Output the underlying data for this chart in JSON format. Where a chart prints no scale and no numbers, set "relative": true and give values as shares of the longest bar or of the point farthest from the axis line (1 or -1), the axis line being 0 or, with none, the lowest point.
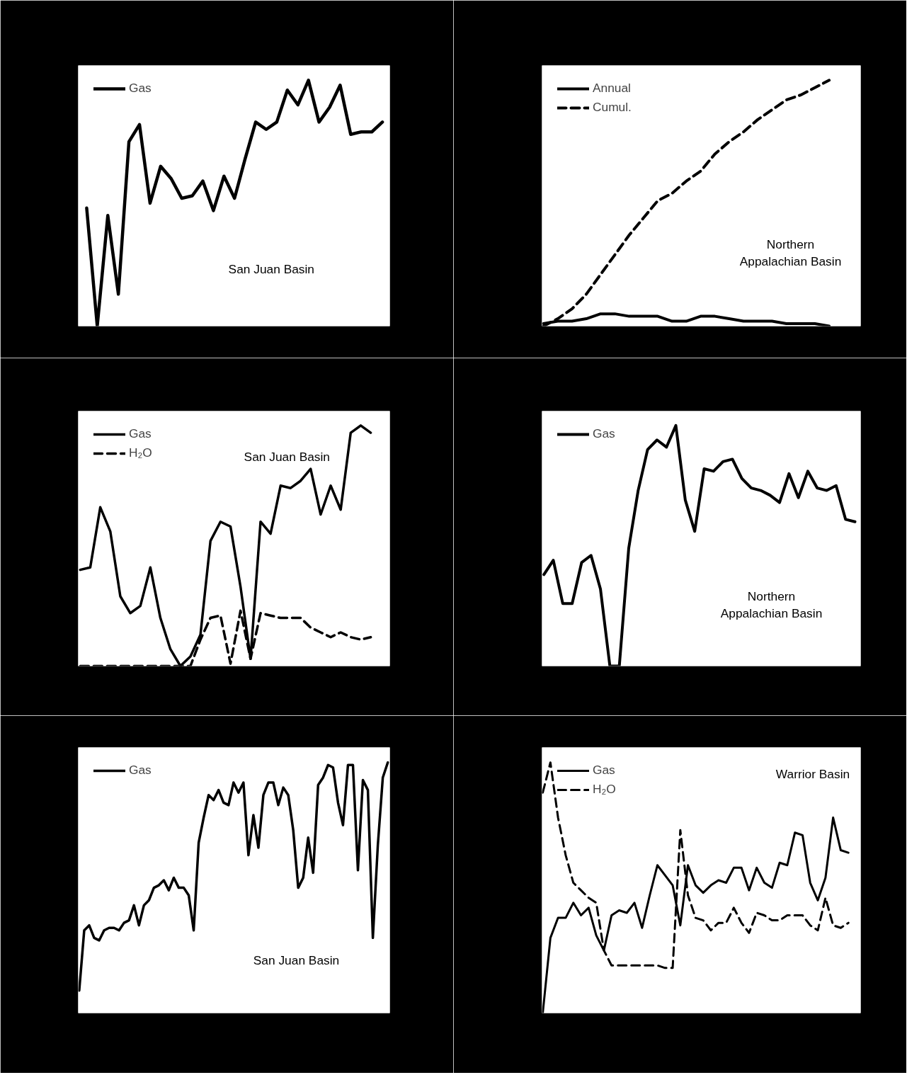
{
  "chart_data": [
    {
      "type": "line",
      "relative": true,
      "legend": "top left",
      "annotations": [
        "San Juan Basin"
      ],
      "categories": [
        null,
        null,
        null,
        null,
        null,
        null,
        null,
        null,
        null,
        null,
        null,
        null,
        null,
        null,
        null,
        null,
        null,
        null,
        null,
        null,
        null,
        null,
        null,
        null,
        null,
        null,
        null,
        null,
        null
      ],
      "series": [
        {
          "name": "Gas",
          "color": "#000000",
          "line_style": "solid",
          "values": [
            0.48,
            0,
            0.45,
            0.13,
            0.75,
            0.82,
            0.5,
            0.65,
            0.6,
            0.52,
            0.53,
            0.59,
            0.47,
            0.61,
            0.52,
            0.68,
            0.83,
            0.8,
            0.83,
            0.96,
            0.9,
            1,
            0.83,
            0.89,
            0.98,
            0.78,
            0.79,
            0.79,
            0.83
          ]
        }
      ]
    },
    {
      "type": "line",
      "relative": true,
      "legend": "top left",
      "annotations": [
        "Northern\nAppalachian Basin"
      ],
      "categories": [
        null,
        null,
        null,
        null,
        null,
        null,
        null,
        null,
        null,
        null,
        null,
        null,
        null,
        null,
        null,
        null,
        null,
        null,
        null,
        null,
        null
      ],
      "series": [
        {
          "name": "Annual",
          "color": "#000000",
          "line_style": "solid",
          "values": [
            0.01,
            0.02,
            0.02,
            0.03,
            0.05,
            0.05,
            0.04,
            0.04,
            0.04,
            0.02,
            0.02,
            0.04,
            0.04,
            0.03,
            0.02,
            0.02,
            0.02,
            0.01,
            0.01,
            0.01,
            0
          ]
        },
        {
          "name": "Cumul.",
          "color": "#000000",
          "line_style": "dashed",
          "values": [
            0,
            0.03,
            0.07,
            0.13,
            0.21,
            0.29,
            0.37,
            0.44,
            0.51,
            0.54,
            0.59,
            0.63,
            0.7,
            0.75,
            0.79,
            0.84,
            0.88,
            0.92,
            0.94,
            0.97,
            1
          ]
        }
      ]
    },
    {
      "type": "line",
      "relative": true,
      "legend": "top left",
      "annotations": [
        "San Juan Basin"
      ],
      "categories": [
        null,
        null,
        null,
        null,
        null,
        null,
        null,
        null,
        null,
        null,
        null,
        null,
        null,
        null,
        null,
        null,
        null,
        null,
        null,
        null,
        null,
        null,
        null,
        null,
        null,
        null,
        null,
        null,
        null,
        null
      ],
      "series": [
        {
          "name": "Gas",
          "color": "#000000",
          "line_style": "solid",
          "values": [
            0.4,
            0.41,
            0.66,
            0.56,
            0.29,
            0.22,
            0.25,
            0.41,
            0.2,
            0.07,
            0,
            0.04,
            0.13,
            0.52,
            0.6,
            0.58,
            0.33,
            0.03,
            0.6,
            0.55,
            0.75,
            0.74,
            0.77,
            0.82,
            0.63,
            0.75,
            0.65,
            0.97,
            1,
            0.97
          ]
        },
        {
          "name": "H₂O",
          "color": "#000000",
          "line_style": "dashed",
          "values": [
            0,
            0,
            0,
            0,
            0,
            0,
            0,
            0,
            0,
            0,
            0,
            0,
            0.11,
            0.2,
            0.21,
            0.01,
            0.23,
            0.03,
            0.22,
            0.21,
            0.2,
            0.2,
            0.2,
            0.16,
            0.14,
            0.12,
            0.14,
            0.12,
            0.11,
            0.12
          ]
        }
      ]
    },
    {
      "type": "line",
      "relative": true,
      "legend": "top left",
      "annotations": [
        "Northern\nAppalachian Basin"
      ],
      "categories": [
        null,
        null,
        null,
        null,
        null,
        null,
        null,
        null,
        null,
        null,
        null,
        null,
        null,
        null,
        null,
        null,
        null,
        null,
        null,
        null,
        null,
        null,
        null,
        null,
        null,
        null,
        null,
        null,
        null,
        null,
        null,
        null,
        null,
        null
      ],
      "series": [
        {
          "name": "Gas",
          "color": "#000000",
          "line_style": "solid",
          "values": [
            0.38,
            0.44,
            0.26,
            0.26,
            0.43,
            0.46,
            0.32,
            0,
            0,
            0.49,
            0.73,
            0.9,
            0.94,
            0.91,
            1,
            0.69,
            0.56,
            0.82,
            0.81,
            0.85,
            0.86,
            0.78,
            0.74,
            0.73,
            0.71,
            0.68,
            0.8,
            0.7,
            0.81,
            0.74,
            0.73,
            0.75,
            0.61,
            0.6
          ]
        }
      ]
    },
    {
      "type": "line",
      "relative": true,
      "legend": "top left",
      "annotations": [
        "San Juan Basin"
      ],
      "categories": [
        null,
        null,
        null,
        null,
        null,
        null,
        null,
        null,
        null,
        null,
        null,
        null,
        null,
        null,
        null,
        null,
        null,
        null,
        null,
        null,
        null,
        null,
        null,
        null,
        null,
        null,
        null,
        null,
        null,
        null,
        null,
        null,
        null,
        null,
        null,
        null,
        null,
        null,
        null,
        null,
        null,
        null,
        null,
        null,
        null,
        null,
        null,
        null,
        null,
        null,
        null,
        null,
        null,
        null,
        null,
        null,
        null,
        null,
        null,
        null,
        null,
        null,
        null
      ],
      "series": [
        {
          "name": "Gas",
          "color": "#000000",
          "line_style": "solid",
          "values": [
            0.09,
            0.33,
            0.35,
            0.3,
            0.29,
            0.33,
            0.34,
            0.34,
            0.33,
            0.36,
            0.37,
            0.43,
            0.35,
            0.43,
            0.45,
            0.5,
            0.51,
            0.53,
            0.49,
            0.54,
            0.5,
            0.5,
            0.47,
            0.33,
            0.68,
            0.78,
            0.87,
            0.85,
            0.89,
            0.84,
            0.83,
            0.92,
            0.88,
            0.92,
            0.63,
            0.79,
            0.66,
            0.87,
            0.92,
            0.92,
            0.83,
            0.9,
            0.87,
            0.73,
            0.5,
            0.54,
            0.7,
            0.56,
            0.91,
            0.94,
            0.99,
            0.98,
            0.84,
            0.75,
            0.99,
            0.99,
            0.57,
            0.93,
            0.89,
            0.3,
            0.67,
            0.94,
            1
          ]
        }
      ]
    },
    {
      "type": "line",
      "relative": true,
      "legend": "top left",
      "annotations": [
        "Warrior Basin"
      ],
      "categories": [
        null,
        null,
        null,
        null,
        null,
        null,
        null,
        null,
        null,
        null,
        null,
        null,
        null,
        null,
        null,
        null,
        null,
        null,
        null,
        null,
        null,
        null,
        null,
        null,
        null,
        null,
        null,
        null,
        null,
        null,
        null,
        null,
        null,
        null,
        null,
        null,
        null,
        null,
        null,
        null,
        null
      ],
      "series": [
        {
          "name": "Gas",
          "color": "#000000",
          "line_style": "solid",
          "values": [
            0,
            0.3,
            0.38,
            0.38,
            0.44,
            0.39,
            0.42,
            0.31,
            0.25,
            0.39,
            0.41,
            0.4,
            0.44,
            0.34,
            0.47,
            0.59,
            0.55,
            0.51,
            0.35,
            0.59,
            0.51,
            0.48,
            0.51,
            0.53,
            0.52,
            0.58,
            0.58,
            0.49,
            0.58,
            0.52,
            0.5,
            0.6,
            0.59,
            0.72,
            0.71,
            0.52,
            0.45,
            0.54,
            0.78,
            0.65,
            0.64
          ]
        },
        {
          "name": "H₂O",
          "color": "#000000",
          "line_style": "dashed",
          "values": [
            0.88,
            1,
            0.78,
            0.63,
            0.52,
            0.49,
            0.46,
            0.44,
            0.25,
            0.19,
            0.19,
            0.19,
            0.19,
            0.19,
            0.19,
            0.19,
            0.18,
            0.18,
            0.73,
            0.47,
            0.38,
            0.37,
            0.33,
            0.36,
            0.36,
            0.42,
            0.36,
            0.32,
            0.4,
            0.39,
            0.37,
            0.37,
            0.39,
            0.39,
            0.39,
            0.35,
            0.33,
            0.46,
            0.35,
            0.34,
            0.36
          ]
        }
      ]
    }
  ]
}
